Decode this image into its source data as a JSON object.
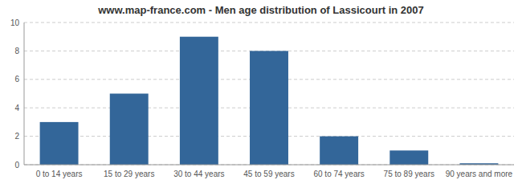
{
  "chart_data": {
    "type": "bar",
    "title": "www.map-france.com - Men age distribution of Lassicourt in 2007",
    "categories": [
      "0 to 14 years",
      "15 to 29 years",
      "30 to 44 years",
      "45 to 59 years",
      "60 to 74 years",
      "75 to 89 years",
      "90 years and more"
    ],
    "values": [
      3,
      5,
      9,
      8,
      2,
      1,
      0.1
    ],
    "color": "#336699",
    "ylim": [
      0,
      10
    ],
    "yticks": [
      0,
      2,
      4,
      6,
      8,
      10
    ],
    "grid": true
  }
}
